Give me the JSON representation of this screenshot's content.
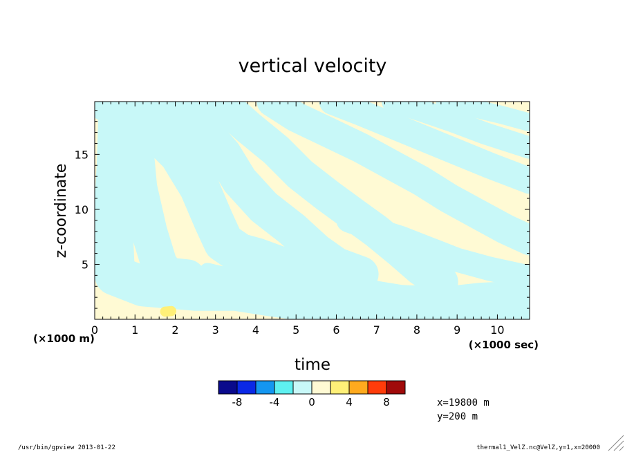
{
  "chart_data": {
    "type": "heatmap",
    "title": "vertical velocity",
    "xlabel": "time",
    "ylabel": "z-coordinate",
    "x_unit": "(×1000 sec)",
    "y_unit": "(×1000 m)",
    "xlim": [
      0,
      10.8
    ],
    "ylim": [
      0,
      19.8
    ],
    "x_ticks": [
      0,
      1,
      2,
      3,
      4,
      5,
      6,
      7,
      8,
      9,
      10
    ],
    "y_ticks": [
      5,
      10,
      15
    ],
    "colorbar": {
      "tick_labels": [
        "-8",
        "-4",
        "0",
        "4",
        "8"
      ],
      "tick_values": [
        -8,
        -4,
        0,
        4,
        8
      ],
      "range": [
        -10,
        10
      ],
      "step": 2,
      "colors": [
        "#0a0a8c",
        "#0a28e6",
        "#1496f0",
        "#5ef0f0",
        "#c8f8f8",
        "#fffad4",
        "#fff078",
        "#ffaa1e",
        "#ff3c0a",
        "#a00a0a"
      ]
    },
    "field_note_colors": {
      "negative_weak": "#c8f8f8",
      "positive_weak": "#fffad4",
      "positive_small": "#fff078"
    },
    "bands": [
      {
        "sign": "neg",
        "pts": [
          [
            0.3,
            19.8
          ],
          [
            0.6,
            19.8
          ],
          [
            0.55,
            14
          ],
          [
            0.45,
            8
          ],
          [
            0.5,
            4
          ],
          [
            1.2,
            3
          ],
          [
            2.5,
            2.6
          ],
          [
            3.5,
            2.6
          ],
          [
            4.2,
            2.2
          ],
          [
            5.5,
            1.5
          ],
          [
            7,
            1.2
          ],
          [
            8.5,
            1.3
          ],
          [
            9.6,
            1.2
          ],
          [
            10.8,
            1.4
          ]
        ],
        "w": 1.0
      },
      {
        "sign": "neg",
        "pts": [
          [
            0.9,
            19.8
          ],
          [
            1.0,
            16
          ],
          [
            1.1,
            12
          ],
          [
            1.35,
            8
          ],
          [
            1.6,
            5
          ],
          [
            1.8,
            4
          ],
          [
            2.3,
            3.8
          ]
        ],
        "w": 0.9
      },
      {
        "sign": "neg",
        "pts": [
          [
            1.5,
            19.8
          ],
          [
            1.55,
            17
          ],
          [
            2.1,
            15
          ],
          [
            2.6,
            12
          ],
          [
            2.95,
            9
          ],
          [
            3.2,
            7
          ],
          [
            3.6,
            6
          ],
          [
            4.0,
            5.6
          ],
          [
            4.6,
            4.8
          ],
          [
            5.3,
            4.2
          ]
        ],
        "w": 1.0
      },
      {
        "sign": "neg",
        "pts": [
          [
            2.1,
            19.8
          ],
          [
            2.6,
            17.5
          ],
          [
            3.2,
            15
          ],
          [
            3.6,
            12.6
          ],
          [
            4.2,
            10.2
          ],
          [
            4.9,
            8.2
          ],
          [
            5.5,
            6.2
          ],
          [
            6.0,
            4.9
          ],
          [
            6.6,
            4.1
          ]
        ],
        "w": 0.9
      },
      {
        "sign": "neg",
        "pts": [
          [
            3.1,
            19.8
          ],
          [
            3.8,
            17.5
          ],
          [
            4.5,
            15.4
          ],
          [
            5.1,
            13.2
          ],
          [
            5.8,
            11.2
          ],
          [
            6.4,
            9.6
          ],
          [
            7.0,
            8.0
          ],
          [
            7.6,
            6.2
          ],
          [
            8.1,
            4.6
          ],
          [
            8.6,
            3.4
          ]
        ],
        "w": 0.85
      },
      {
        "sign": "neg",
        "pts": [
          [
            4.4,
            19.8
          ],
          [
            5.0,
            18.4
          ],
          [
            5.8,
            17.0
          ],
          [
            6.6,
            15.6
          ],
          [
            7.4,
            14.0
          ],
          [
            8.1,
            12.6
          ],
          [
            8.8,
            11.0
          ],
          [
            9.5,
            9.6
          ],
          [
            10.2,
            8.2
          ],
          [
            10.8,
            7.2
          ]
        ],
        "w": 0.75
      },
      {
        "sign": "neg",
        "pts": [
          [
            5.9,
            19.8
          ],
          [
            6.6,
            18.8
          ],
          [
            7.4,
            17.6
          ],
          [
            8.2,
            16.4
          ],
          [
            9.0,
            15.2
          ],
          [
            9.8,
            14.0
          ],
          [
            10.8,
            12.6
          ]
        ],
        "w": 0.65
      },
      {
        "sign": "neg",
        "pts": [
          [
            7.4,
            19.8
          ],
          [
            8.1,
            19.0
          ],
          [
            8.9,
            18.0
          ],
          [
            9.7,
            16.9
          ],
          [
            10.8,
            15.6
          ]
        ],
        "w": 0.55
      },
      {
        "sign": "neg",
        "pts": [
          [
            8.7,
            19.8
          ],
          [
            9.4,
            19.2
          ],
          [
            10.1,
            18.6
          ],
          [
            10.8,
            17.9
          ]
        ],
        "w": 0.45
      },
      {
        "sign": "neg",
        "pts": [
          [
            6.3,
            9.0
          ],
          [
            6.9,
            8.2
          ],
          [
            7.6,
            7.4
          ],
          [
            8.3,
            6.4
          ],
          [
            9.0,
            5.4
          ],
          [
            9.8,
            4.6
          ],
          [
            10.8,
            3.8
          ]
        ],
        "w": 0.6
      },
      {
        "sign": "neg",
        "pts": [
          [
            2.8,
            4.4
          ],
          [
            3.5,
            3.8
          ],
          [
            4.3,
            3.3
          ],
          [
            5.0,
            3.0
          ],
          [
            5.8,
            3.4
          ],
          [
            6.6,
            3.0
          ],
          [
            7.6,
            2.4
          ],
          [
            8.6,
            2.2
          ],
          [
            9.6,
            2.6
          ],
          [
            10.8,
            2.8
          ]
        ],
        "w": 0.4
      },
      {
        "sign": "pos",
        "pts": [
          [
            1.75,
            0.7
          ],
          [
            1.9,
            0.75
          ]
        ],
        "w": 0.25,
        "strong": true
      }
    ]
  },
  "footer": {
    "left": "/usr/bin/gpview  2013-01-22",
    "right": "thermal1_VelZ.nc@VelZ,y=1,x=20000"
  },
  "annotation": {
    "line1": "x=19800 m",
    "line2": "y=200 m"
  }
}
